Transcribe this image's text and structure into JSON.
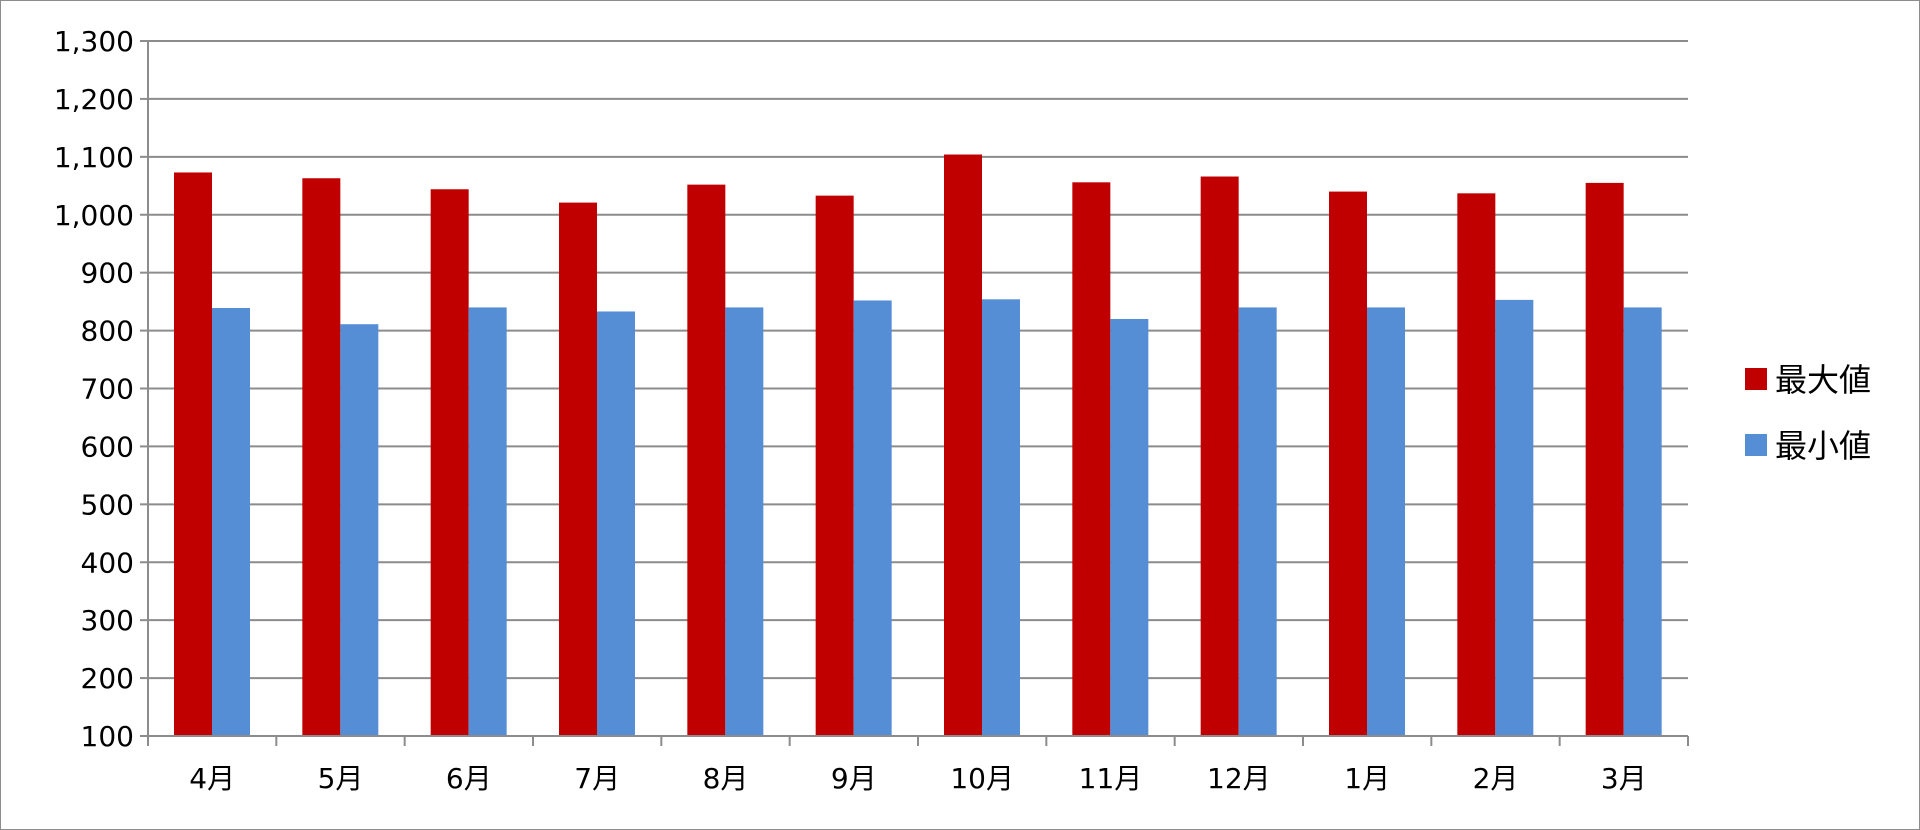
{
  "chart_data": {
    "type": "bar",
    "title": "",
    "xlabel": "",
    "ylabel": "",
    "categories": [
      "4月",
      "5月",
      "6月",
      "7月",
      "8月",
      "9月",
      "10月",
      "11月",
      "12月",
      "1月",
      "2月",
      "3月"
    ],
    "series": [
      {
        "name": "最大値",
        "color": "#c00000",
        "values": [
          1073,
          1063,
          1044,
          1021,
          1052,
          1033,
          1104,
          1056,
          1066,
          1040,
          1037,
          1055
        ]
      },
      {
        "name": "最小値",
        "color": "#558ed5",
        "values": [
          839,
          811,
          840,
          833,
          840,
          852,
          854,
          820,
          840,
          840,
          853,
          840
        ]
      }
    ],
    "ylim": [
      100,
      1300
    ],
    "yticks": [
      "100",
      "200",
      "300",
      "400",
      "500",
      "600",
      "700",
      "800",
      "900",
      "1,000",
      "1,100",
      "1,200",
      "1,300"
    ],
    "grid": true,
    "legend_position": "right"
  }
}
